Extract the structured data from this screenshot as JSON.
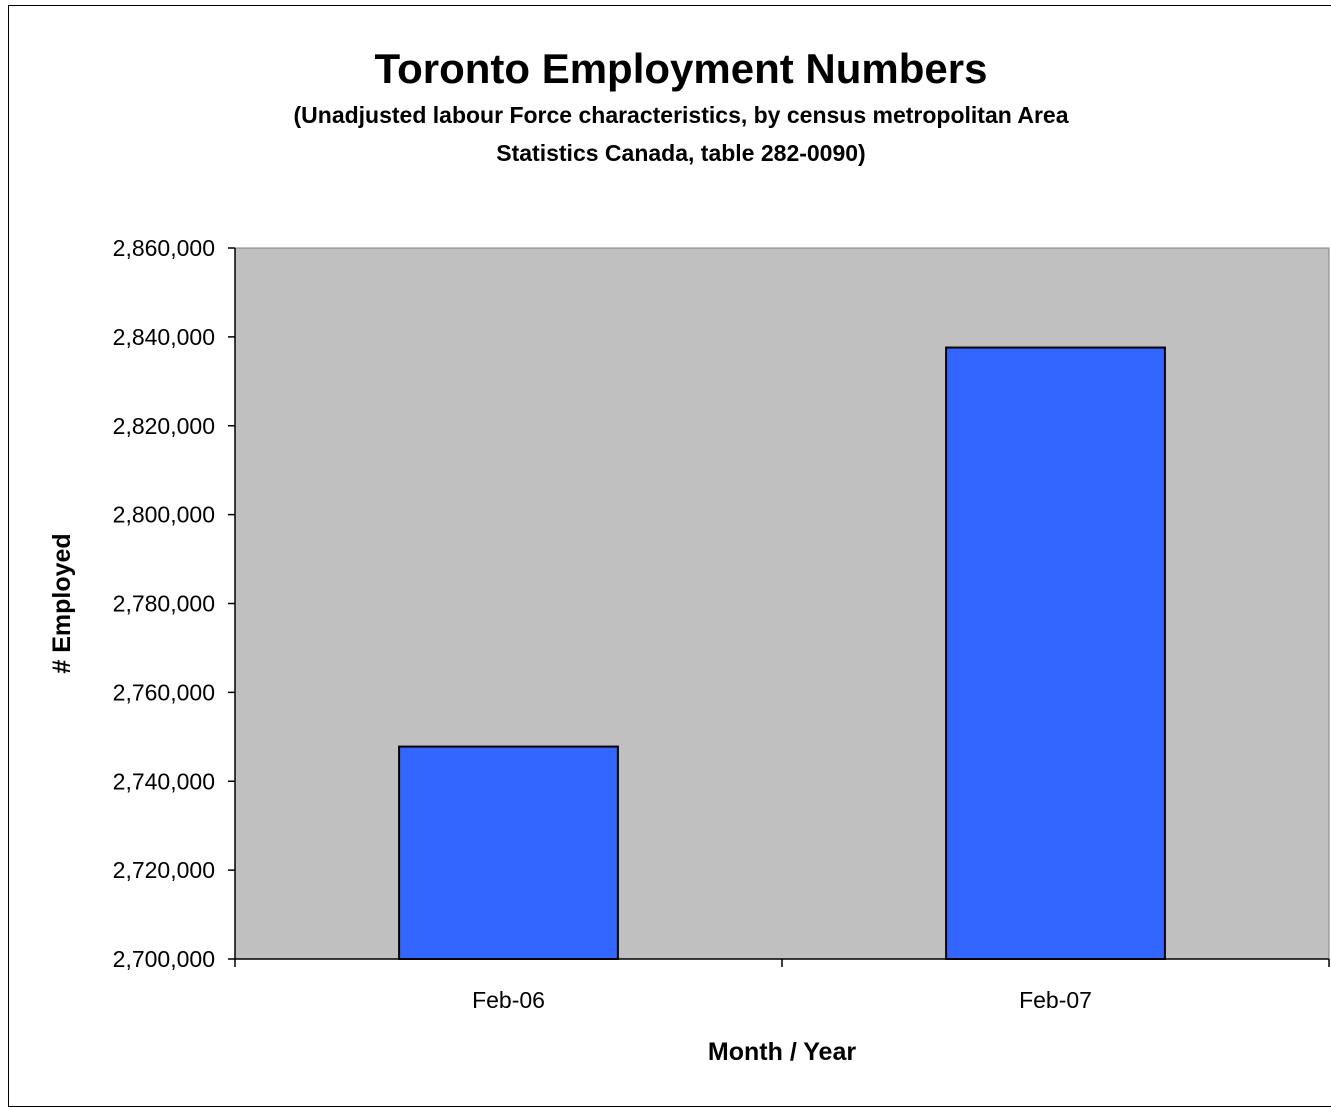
{
  "chart_data": {
    "type": "bar",
    "title": "Toronto Employment Numbers",
    "subtitle": [
      "(Unadjusted labour Force characteristics, by census metropolitan Area",
      "Statistics Canada, table 282-0090)"
    ],
    "xlabel": "Month / Year",
    "ylabel": "# Employed",
    "categories": [
      "Feb-06",
      "Feb-07"
    ],
    "values": [
      2747800,
      2837600
    ],
    "ylim": [
      2700000,
      2860000
    ],
    "yticks": [
      2700000,
      2720000,
      2740000,
      2760000,
      2780000,
      2800000,
      2820000,
      2840000,
      2860000
    ],
    "ytick_labels": [
      "2,700,000",
      "2,720,000",
      "2,740,000",
      "2,760,000",
      "2,780,000",
      "2,800,000",
      "2,820,000",
      "2,840,000",
      "2,860,000"
    ],
    "grid": false,
    "legend": "none",
    "colors": {
      "bar": "#3366ff",
      "plot_background": "#c0c0c0"
    }
  }
}
